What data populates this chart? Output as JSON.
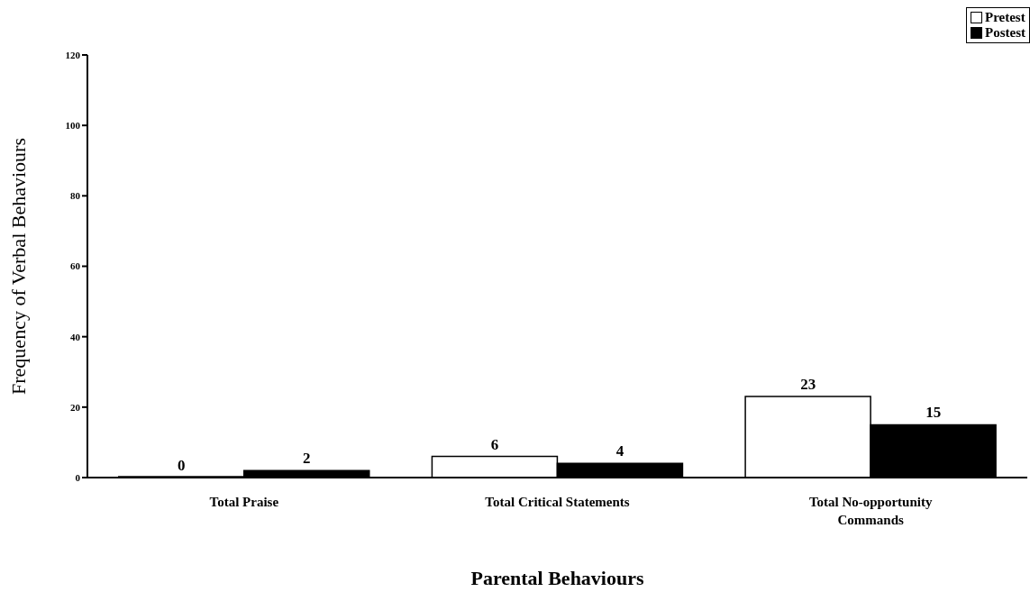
{
  "chart_data": {
    "type": "bar",
    "xlabel": "Parental Behaviours",
    "ylabel": "Frequency of Verbal Behaviours",
    "categories": [
      "Total Praise",
      "Total Critical Statements",
      "Total No-opportunity Commands"
    ],
    "series": [
      {
        "name": "Pretest",
        "color": "#ffffff",
        "values": [
          0,
          6,
          23
        ]
      },
      {
        "name": "Postest",
        "color": "#000000",
        "values": [
          2,
          4,
          15
        ]
      }
    ],
    "ylim": [
      0,
      120
    ],
    "yticks": [
      0,
      20,
      40,
      60,
      80,
      100,
      120
    ],
    "grid": false,
    "legend": "top right",
    "data_labels": true
  }
}
